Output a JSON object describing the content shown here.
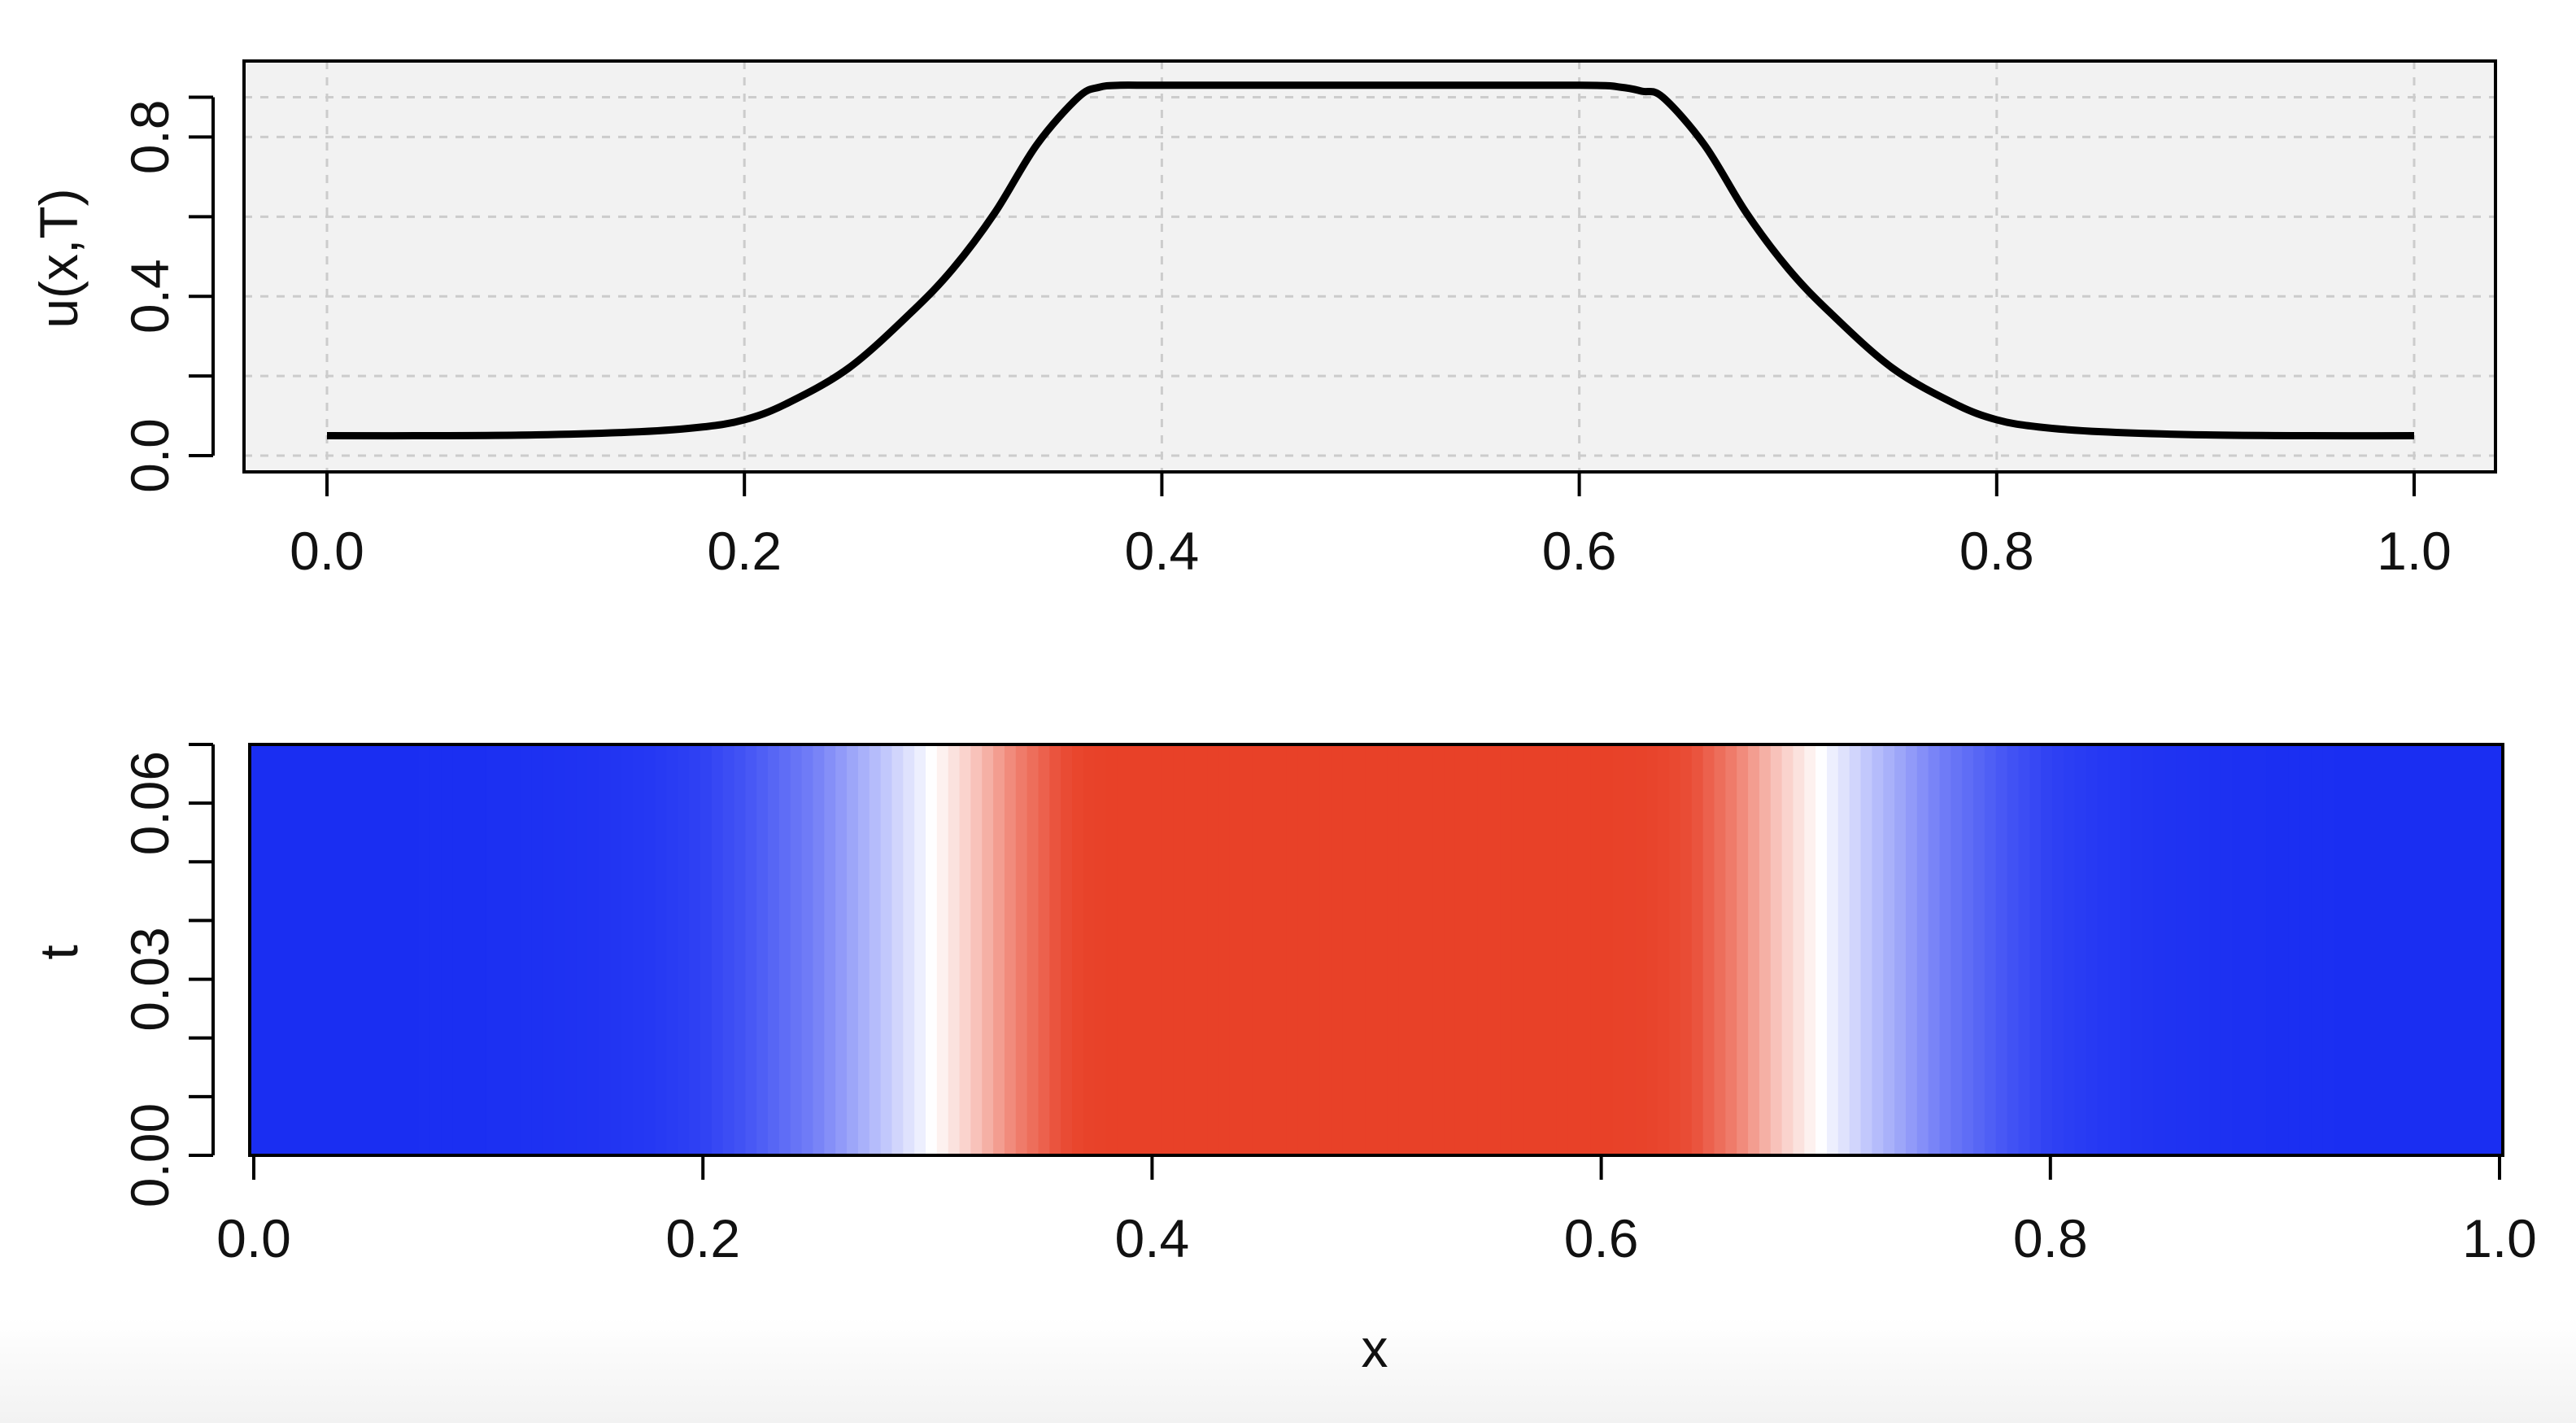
{
  "chart_data": [
    {
      "type": "line",
      "xlabel": "",
      "ylabel": "u(x,T)",
      "xlim": [
        0.0,
        1.0
      ],
      "ylim": [
        0.0,
        0.95
      ],
      "x_ticks": [
        "0.0",
        "0.2",
        "0.4",
        "0.6",
        "0.8",
        "1.0"
      ],
      "y_ticks": [
        "0.0",
        "0.4",
        "0.8"
      ],
      "grid": true,
      "colors": {
        "line": "#000000",
        "grid": "#cccccc",
        "background": "#f2f2f2"
      },
      "series": [
        {
          "x": [
            0.0,
            0.05,
            0.1,
            0.15,
            0.18,
            0.2,
            0.22,
            0.25,
            0.28,
            0.3,
            0.32,
            0.34,
            0.36,
            0.37,
            0.38,
            0.4,
            0.5,
            0.6,
            0.62,
            0.63,
            0.64,
            0.66,
            0.68,
            0.7,
            0.72,
            0.75,
            0.78,
            0.8,
            0.82,
            0.85,
            0.9,
            0.95,
            1.0
          ],
          "y": [
            0.05,
            0.05,
            0.052,
            0.06,
            0.072,
            0.09,
            0.13,
            0.22,
            0.36,
            0.47,
            0.61,
            0.78,
            0.9,
            0.925,
            0.93,
            0.93,
            0.93,
            0.93,
            0.925,
            0.915,
            0.9,
            0.78,
            0.61,
            0.47,
            0.36,
            0.22,
            0.13,
            0.09,
            0.072,
            0.06,
            0.052,
            0.05,
            0.05
          ]
        }
      ]
    },
    {
      "type": "heatmap",
      "xlabel": "x",
      "ylabel": "t",
      "xlim": [
        0.0,
        1.0
      ],
      "ylim": [
        0.0,
        0.07
      ],
      "x_ticks": [
        "0.0",
        "0.2",
        "0.4",
        "0.6",
        "0.8",
        "1.0"
      ],
      "y_ticks": [
        "0.00",
        "0.03",
        "0.06"
      ],
      "grid": false,
      "colors": {
        "low": "#1a2ef2",
        "mid": "#ffffff",
        "high": "#e84128"
      },
      "color_range": [
        0.05,
        0.93
      ],
      "note_constant_in_t": true
    }
  ]
}
